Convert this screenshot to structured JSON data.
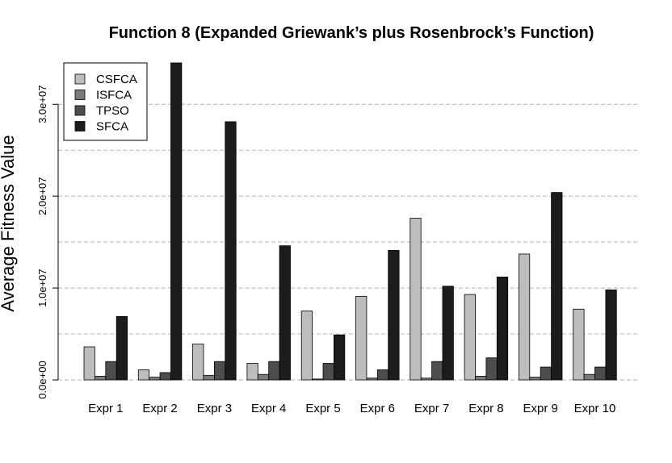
{
  "chart_data": {
    "type": "bar",
    "title": "Function 8 (Expanded Griewank’s plus Rosenbrock’s Function)",
    "xlabel": "",
    "ylabel": "Average Fitness Value",
    "categories": [
      "Expr 1",
      "Expr 2",
      "Expr 3",
      "Expr 4",
      "Expr 5",
      "Expr 6",
      "Expr 7",
      "Expr 8",
      "Expr 9",
      "Expr 10"
    ],
    "ylim": [
      0,
      34500000
    ],
    "yticks": [
      0,
      10000000,
      20000000,
      30000000
    ],
    "ytick_labels": [
      "0.0e+00",
      "1.0e+07",
      "2.0e+07",
      "3.0e+07"
    ],
    "grid": "horizontal dashed",
    "legend_position": "top-left",
    "series": [
      {
        "name": "CSFCA",
        "color": "#bdbdbd",
        "values": [
          3600000,
          1100000,
          3900000,
          1800000,
          7500000,
          9100000,
          17600000,
          9300000,
          13700000,
          7700000
        ]
      },
      {
        "name": "ISFCA",
        "color": "#7a7a7a",
        "values": [
          400000,
          300000,
          500000,
          600000,
          100000,
          200000,
          200000,
          400000,
          300000,
          600000
        ]
      },
      {
        "name": "TPSO",
        "color": "#4d4d4d",
        "values": [
          2000000,
          800000,
          2000000,
          2000000,
          1800000,
          1100000,
          2000000,
          2400000,
          1400000,
          1400000
        ]
      },
      {
        "name": "SFCA",
        "color": "#1c1c1c",
        "values": [
          6900000,
          34500000,
          28100000,
          14600000,
          4900000,
          14100000,
          10200000,
          11200000,
          20400000,
          9800000
        ]
      }
    ]
  }
}
